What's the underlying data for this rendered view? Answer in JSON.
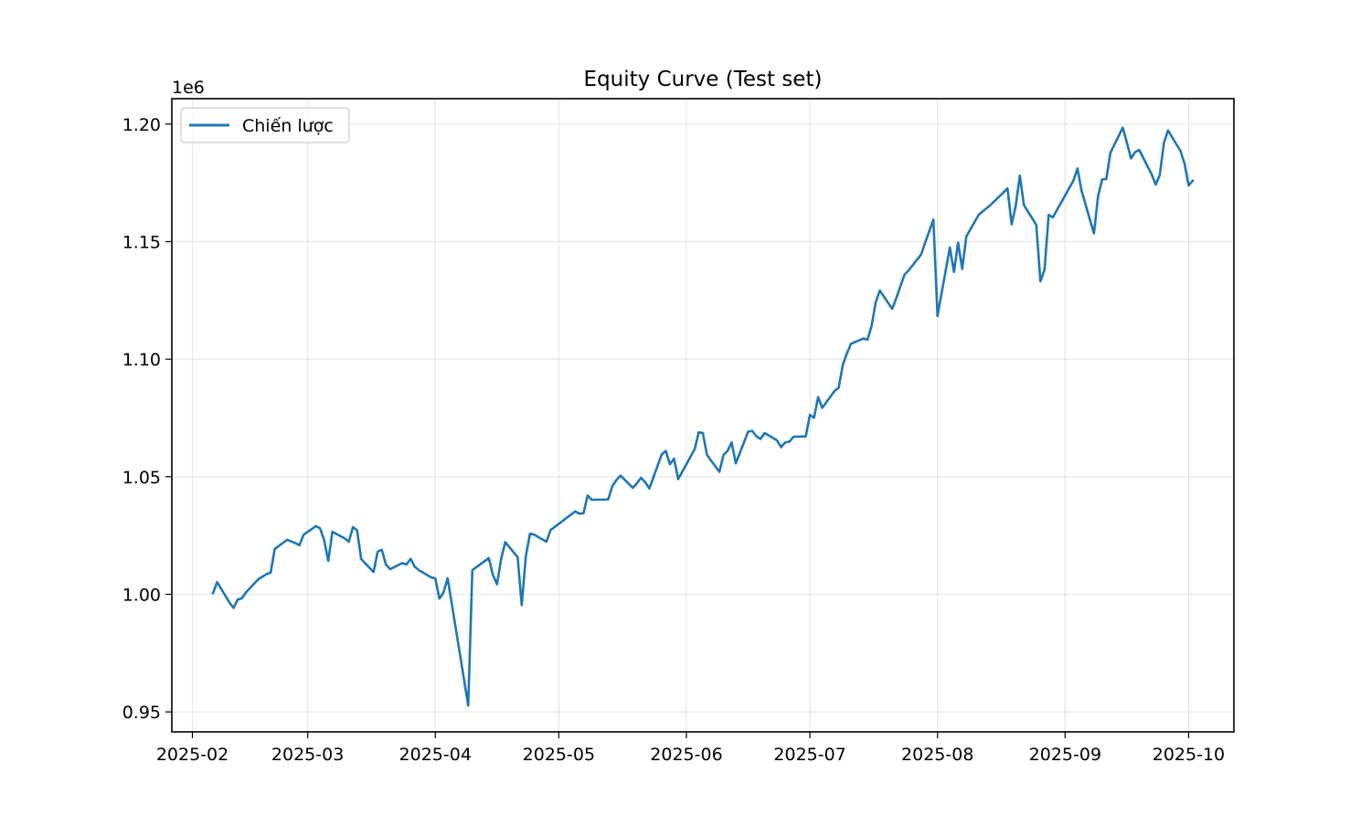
{
  "chart_data": {
    "type": "line",
    "title": "Equity Curve (Test set)",
    "xlabel": "",
    "ylabel": "",
    "y_offset_label": "1e6",
    "y_scale": 1000000,
    "grid": true,
    "legend_position": "upper-left",
    "x_axis_type": "date",
    "xlim": [
      "2025-01-27",
      "2025-10-12"
    ],
    "ylim": [
      0.9415,
      1.2108
    ],
    "x_ticks": [
      {
        "value": "2025-02-01",
        "label": "2025-02"
      },
      {
        "value": "2025-03-01",
        "label": "2025-03"
      },
      {
        "value": "2025-04-01",
        "label": "2025-04"
      },
      {
        "value": "2025-05-01",
        "label": "2025-05"
      },
      {
        "value": "2025-06-01",
        "label": "2025-06"
      },
      {
        "value": "2025-07-01",
        "label": "2025-07"
      },
      {
        "value": "2025-08-01",
        "label": "2025-08"
      },
      {
        "value": "2025-09-01",
        "label": "2025-09"
      },
      {
        "value": "2025-10-01",
        "label": "2025-10"
      }
    ],
    "y_ticks": [
      {
        "value": 0.95,
        "label": "0.95"
      },
      {
        "value": 1.0,
        "label": "1.00"
      },
      {
        "value": 1.05,
        "label": "1.05"
      },
      {
        "value": 1.1,
        "label": "1.10"
      },
      {
        "value": 1.15,
        "label": "1.15"
      },
      {
        "value": 1.2,
        "label": "1.20"
      }
    ],
    "series": [
      {
        "name": "Chiến lược",
        "color": "#1f77b4",
        "x": [
          "2025-02-06",
          "2025-02-07",
          "2025-02-10",
          "2025-02-11",
          "2025-02-12",
          "2025-02-13",
          "2025-02-14",
          "2025-02-17",
          "2025-02-18",
          "2025-02-19",
          "2025-02-20",
          "2025-02-21",
          "2025-02-24",
          "2025-02-25",
          "2025-02-26",
          "2025-02-27",
          "2025-02-28",
          "2025-03-03",
          "2025-03-04",
          "2025-03-05",
          "2025-03-06",
          "2025-03-07",
          "2025-03-10",
          "2025-03-11",
          "2025-03-12",
          "2025-03-13",
          "2025-03-14",
          "2025-03-17",
          "2025-03-18",
          "2025-03-19",
          "2025-03-20",
          "2025-03-21",
          "2025-03-24",
          "2025-03-25",
          "2025-03-26",
          "2025-03-27",
          "2025-03-28",
          "2025-03-31",
          "2025-04-01",
          "2025-04-02",
          "2025-04-03",
          "2025-04-04",
          "2025-04-09",
          "2025-04-10",
          "2025-04-14",
          "2025-04-15",
          "2025-04-16",
          "2025-04-17",
          "2025-04-18",
          "2025-04-21",
          "2025-04-22",
          "2025-04-23",
          "2025-04-24",
          "2025-04-25",
          "2025-04-28",
          "2025-04-29",
          "2025-05-05",
          "2025-05-06",
          "2025-05-07",
          "2025-05-08",
          "2025-05-09",
          "2025-05-12",
          "2025-05-13",
          "2025-05-14",
          "2025-05-15",
          "2025-05-16",
          "2025-05-19",
          "2025-05-20",
          "2025-05-21",
          "2025-05-22",
          "2025-05-23",
          "2025-05-26",
          "2025-05-27",
          "2025-05-28",
          "2025-05-29",
          "2025-05-30",
          "2025-06-02",
          "2025-06-03",
          "2025-06-04",
          "2025-06-05",
          "2025-06-06",
          "2025-06-09",
          "2025-06-10",
          "2025-06-11",
          "2025-06-12",
          "2025-06-13",
          "2025-06-16",
          "2025-06-17",
          "2025-06-18",
          "2025-06-19",
          "2025-06-20",
          "2025-06-23",
          "2025-06-24",
          "2025-06-25",
          "2025-06-26",
          "2025-06-27",
          "2025-06-30",
          "2025-07-01",
          "2025-07-02",
          "2025-07-03",
          "2025-07-04",
          "2025-07-07",
          "2025-07-08",
          "2025-07-09",
          "2025-07-10",
          "2025-07-11",
          "2025-07-14",
          "2025-07-15",
          "2025-07-16",
          "2025-07-17",
          "2025-07-18",
          "2025-07-21",
          "2025-07-22",
          "2025-07-23",
          "2025-07-24",
          "2025-07-25",
          "2025-07-28",
          "2025-07-29",
          "2025-07-30",
          "2025-07-31",
          "2025-08-01",
          "2025-08-04",
          "2025-08-05",
          "2025-08-06",
          "2025-08-07",
          "2025-08-08",
          "2025-08-11",
          "2025-08-12",
          "2025-08-13",
          "2025-08-14",
          "2025-08-15",
          "2025-08-18",
          "2025-08-19",
          "2025-08-20",
          "2025-08-21",
          "2025-08-22",
          "2025-08-25",
          "2025-08-26",
          "2025-08-27",
          "2025-08-28",
          "2025-08-29",
          "2025-09-03",
          "2025-09-04",
          "2025-09-05",
          "2025-09-08",
          "2025-09-09",
          "2025-09-10",
          "2025-09-11",
          "2025-09-12",
          "2025-09-15",
          "2025-09-16",
          "2025-09-17",
          "2025-09-18",
          "2025-09-19",
          "2025-09-22",
          "2025-09-23",
          "2025-09-24",
          "2025-09-25",
          "2025-09-26",
          "2025-09-29",
          "2025-09-30",
          "2025-10-01",
          "2025-10-02"
        ],
        "y": [
          1.0005,
          1.0052,
          0.9965,
          0.9942,
          0.9978,
          0.9983,
          1.0008,
          1.0064,
          1.0075,
          1.0086,
          1.0092,
          1.0193,
          1.0232,
          1.0225,
          1.0218,
          1.0209,
          1.0253,
          1.029,
          1.0281,
          1.0231,
          1.0142,
          1.0266,
          1.0238,
          1.0224,
          1.0286,
          1.0272,
          1.015,
          1.0095,
          1.0181,
          1.019,
          1.0127,
          1.0107,
          1.0133,
          1.0127,
          1.0151,
          1.0118,
          1.0103,
          1.0072,
          1.0068,
          0.9982,
          1.0008,
          1.0069,
          0.9527,
          1.0103,
          1.0154,
          1.0082,
          1.0043,
          1.0151,
          1.0222,
          1.0158,
          0.9954,
          1.0163,
          1.0258,
          1.0254,
          1.0224,
          1.0273,
          1.0353,
          1.0343,
          1.0345,
          1.042,
          1.0402,
          1.0403,
          1.0404,
          1.046,
          1.0486,
          1.0505,
          1.0453,
          1.0473,
          1.0496,
          1.0477,
          1.045,
          1.0595,
          1.061,
          1.0553,
          1.0577,
          1.049,
          1.0585,
          1.0617,
          1.0689,
          1.0686,
          1.0593,
          1.0521,
          1.0592,
          1.061,
          1.0646,
          1.0557,
          1.0692,
          1.0695,
          1.0672,
          1.0661,
          1.0686,
          1.0655,
          1.0626,
          1.0646,
          1.0649,
          1.067,
          1.0672,
          1.0763,
          1.0751,
          1.0839,
          1.0793,
          1.0865,
          1.0879,
          1.0976,
          1.1025,
          1.1066,
          1.1088,
          1.1083,
          1.1143,
          1.1243,
          1.1292,
          1.1214,
          1.126,
          1.1311,
          1.136,
          1.1378,
          1.1445,
          1.1496,
          1.1545,
          1.1594,
          1.1184,
          1.1475,
          1.1371,
          1.1496,
          1.1384,
          1.1522,
          1.1614,
          1.1629,
          1.1643,
          1.1658,
          1.1675,
          1.1726,
          1.1574,
          1.1652,
          1.1781,
          1.1655,
          1.1571,
          1.1331,
          1.1381,
          1.1614,
          1.1603,
          1.1759,
          1.1811,
          1.1716,
          1.1535,
          1.1693,
          1.1765,
          1.1766,
          1.1878,
          1.1985,
          1.1921,
          1.1854,
          1.1881,
          1.189,
          1.1787,
          1.1743,
          1.1783,
          1.192,
          1.1973,
          1.1886,
          1.1833,
          1.1739,
          1.1759
        ]
      }
    ]
  }
}
